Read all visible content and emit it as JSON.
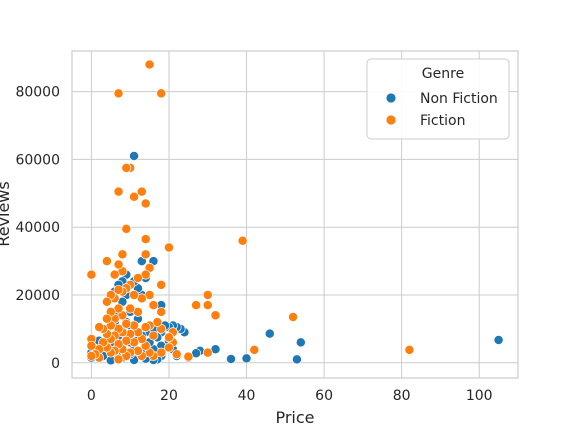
{
  "chart_data": {
    "type": "scatter",
    "xlabel": "Price",
    "ylabel": "Reviews",
    "xlim": [
      -5,
      110
    ],
    "ylim": [
      -4500,
      92000
    ],
    "xticks": [
      0,
      20,
      40,
      60,
      80,
      100
    ],
    "yticks": [
      0,
      20000,
      40000,
      60000,
      80000
    ],
    "grid": true,
    "legend": {
      "title": "Genre",
      "position": "top-right"
    },
    "series": [
      {
        "name": "Non Fiction",
        "color": "#1f77b4",
        "points": [
          [
            105,
            6700
          ],
          [
            54,
            6000
          ],
          [
            53,
            1000
          ],
          [
            46,
            8600
          ],
          [
            40,
            1300
          ],
          [
            36,
            1100
          ],
          [
            32,
            4000
          ],
          [
            28,
            3500
          ],
          [
            27,
            2800
          ],
          [
            25,
            1500
          ],
          [
            24,
            9000
          ],
          [
            23,
            10000
          ],
          [
            22,
            10500
          ],
          [
            22,
            2000
          ],
          [
            21,
            11000
          ],
          [
            21,
            4000
          ],
          [
            20,
            10500
          ],
          [
            20,
            6500
          ],
          [
            19,
            11000
          ],
          [
            18,
            17000
          ],
          [
            18,
            9000
          ],
          [
            18,
            5000
          ],
          [
            18,
            2000
          ],
          [
            17,
            12000
          ],
          [
            17,
            7500
          ],
          [
            17,
            3000
          ],
          [
            17,
            1000
          ],
          [
            16,
            30000
          ],
          [
            16,
            10000
          ],
          [
            16,
            4000
          ],
          [
            16,
            800
          ],
          [
            15,
            28000
          ],
          [
            15,
            11000
          ],
          [
            15,
            6000
          ],
          [
            15,
            2000
          ],
          [
            14,
            25000
          ],
          [
            14,
            9000
          ],
          [
            14,
            4500
          ],
          [
            14,
            1200
          ],
          [
            13,
            30000
          ],
          [
            13,
            20000
          ],
          [
            13,
            8000
          ],
          [
            13,
            3500
          ],
          [
            12,
            22000
          ],
          [
            12,
            13000
          ],
          [
            12,
            7000
          ],
          [
            12,
            2500
          ],
          [
            11,
            61000
          ],
          [
            11,
            24000
          ],
          [
            11,
            9000
          ],
          [
            11,
            4000
          ],
          [
            11,
            800
          ],
          [
            10,
            15000
          ],
          [
            10,
            11000
          ],
          [
            10,
            6000
          ],
          [
            10,
            2500
          ],
          [
            9,
            26000
          ],
          [
            9,
            20000
          ],
          [
            9,
            12000
          ],
          [
            9,
            7000
          ],
          [
            9,
            3000
          ],
          [
            8,
            24000
          ],
          [
            8,
            18000
          ],
          [
            8,
            10000
          ],
          [
            8,
            5000
          ],
          [
            8,
            1500
          ],
          [
            7,
            23000
          ],
          [
            7,
            14000
          ],
          [
            7,
            8000
          ],
          [
            7,
            3500
          ],
          [
            7,
            800
          ],
          [
            6,
            21000
          ],
          [
            6,
            12000
          ],
          [
            6,
            6000
          ],
          [
            6,
            2000
          ],
          [
            5,
            11000
          ],
          [
            5,
            6000
          ],
          [
            5,
            3000
          ],
          [
            5,
            700
          ],
          [
            4,
            9000
          ],
          [
            4,
            4500
          ],
          [
            3,
            6000
          ],
          [
            3,
            2000
          ],
          [
            2,
            6500
          ],
          [
            0,
            3000
          ],
          [
            0,
            1500
          ]
        ]
      },
      {
        "name": "Fiction",
        "color": "#ff7f0e",
        "points": [
          [
            82,
            3800
          ],
          [
            52,
            13500
          ],
          [
            42,
            3800
          ],
          [
            39,
            36000
          ],
          [
            32,
            14000
          ],
          [
            30,
            20000
          ],
          [
            30,
            17000
          ],
          [
            30,
            3000
          ],
          [
            27,
            17000
          ],
          [
            25,
            1800
          ],
          [
            22,
            2500
          ],
          [
            21,
            9000
          ],
          [
            21,
            6000
          ],
          [
            20,
            34000
          ],
          [
            20,
            7500
          ],
          [
            20,
            4500
          ],
          [
            18,
            79500
          ],
          [
            18,
            23000
          ],
          [
            18,
            15000
          ],
          [
            18,
            10000
          ],
          [
            18,
            3000
          ],
          [
            17,
            12000
          ],
          [
            16,
            17000
          ],
          [
            16,
            8000
          ],
          [
            16,
            2000
          ],
          [
            15,
            88000
          ],
          [
            15,
            28000
          ],
          [
            15,
            20000
          ],
          [
            15,
            11000
          ],
          [
            15,
            3000
          ],
          [
            14,
            36500
          ],
          [
            14,
            47000
          ],
          [
            14,
            32000
          ],
          [
            14,
            26000
          ],
          [
            14,
            10500
          ],
          [
            14,
            5000
          ],
          [
            13,
            50500
          ],
          [
            13,
            19000
          ],
          [
            13,
            7000
          ],
          [
            13,
            2000
          ],
          [
            12,
            25000
          ],
          [
            12,
            15000
          ],
          [
            12,
            9000
          ],
          [
            12,
            3500
          ],
          [
            11,
            49000
          ],
          [
            11,
            20000
          ],
          [
            11,
            11000
          ],
          [
            11,
            6000
          ],
          [
            10,
            57500
          ],
          [
            10,
            23000
          ],
          [
            10,
            16000
          ],
          [
            10,
            8500
          ],
          [
            10,
            3000
          ],
          [
            9,
            57500
          ],
          [
            9,
            39500
          ],
          [
            9,
            22000
          ],
          [
            9,
            11500
          ],
          [
            9,
            6500
          ],
          [
            9,
            2000
          ],
          [
            8,
            32000
          ],
          [
            8,
            27000
          ],
          [
            8,
            21000
          ],
          [
            8,
            14000
          ],
          [
            8,
            9000
          ],
          [
            8,
            4000
          ],
          [
            7,
            79500
          ],
          [
            7,
            50500
          ],
          [
            7,
            29000
          ],
          [
            7,
            21500
          ],
          [
            7,
            16000
          ],
          [
            7,
            10000
          ],
          [
            7,
            5500
          ],
          [
            7,
            1000
          ],
          [
            6,
            26000
          ],
          [
            6,
            19000
          ],
          [
            6,
            13000
          ],
          [
            6,
            8000
          ],
          [
            6,
            3500
          ],
          [
            5,
            20000
          ],
          [
            5,
            15000
          ],
          [
            5,
            11000
          ],
          [
            5,
            7000
          ],
          [
            5,
            3000
          ],
          [
            4,
            30000
          ],
          [
            4,
            18000
          ],
          [
            4,
            13000
          ],
          [
            4,
            8500
          ],
          [
            4,
            4500
          ],
          [
            3,
            10000
          ],
          [
            3,
            6000
          ],
          [
            2,
            10500
          ],
          [
            2,
            4000
          ],
          [
            2,
            1500
          ],
          [
            1,
            2500
          ],
          [
            0,
            26000
          ],
          [
            0,
            7000
          ],
          [
            0,
            5000
          ],
          [
            0,
            2000
          ]
        ]
      }
    ]
  }
}
